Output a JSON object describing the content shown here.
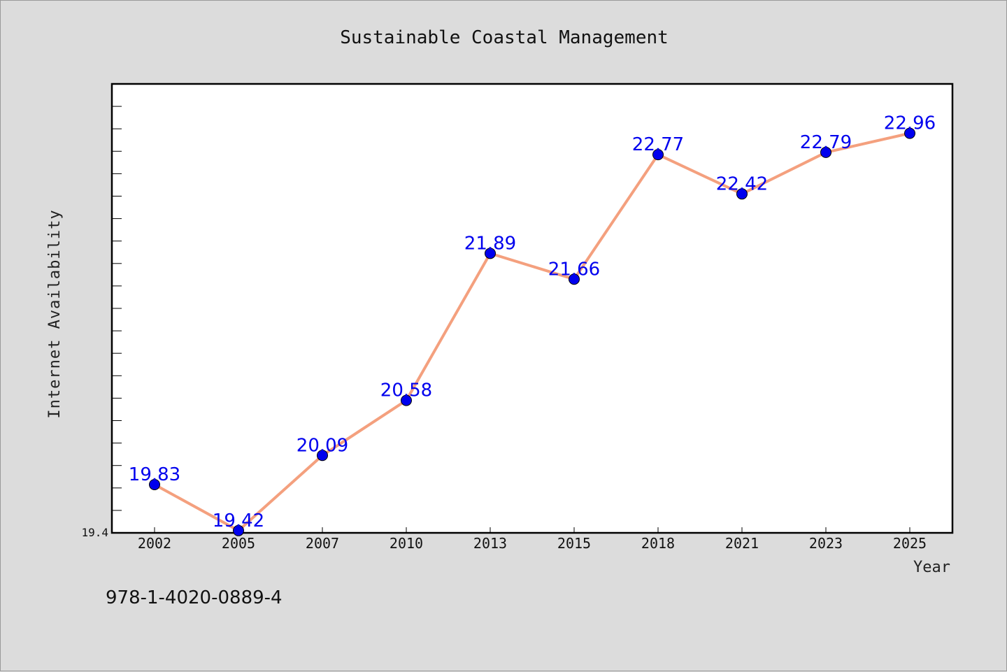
{
  "chart_data": {
    "type": "line",
    "title": "Sustainable Coastal Management",
    "xlabel": "Year",
    "ylabel": "Internet Availability",
    "categories": [
      "2002",
      "2005",
      "2007",
      "2010",
      "2013",
      "2015",
      "2018",
      "2021",
      "2023",
      "2025"
    ],
    "series": [
      {
        "values": [
          19.83,
          19.42,
          20.09,
          20.58,
          21.89,
          21.66,
          22.77,
          22.42,
          22.79,
          22.96
        ]
      }
    ],
    "ylim": [
      19.4,
      23.4
    ],
    "ytick_labels": [
      "19.4"
    ],
    "data_labels": [
      "19.83",
      "19.42",
      "20.09",
      "20.58",
      "21.89",
      "21.66",
      "22.77",
      "22.42",
      "22.79",
      "22.96"
    ],
    "grid": false,
    "colors": {
      "line": "#f4a07e",
      "marker": "#0000ee",
      "label": "#0000ee",
      "plot_background": "#ffffff",
      "page_background": "#dcdcdc"
    }
  },
  "annotation": {
    "isbn": "978-1-4020-0889-4"
  }
}
